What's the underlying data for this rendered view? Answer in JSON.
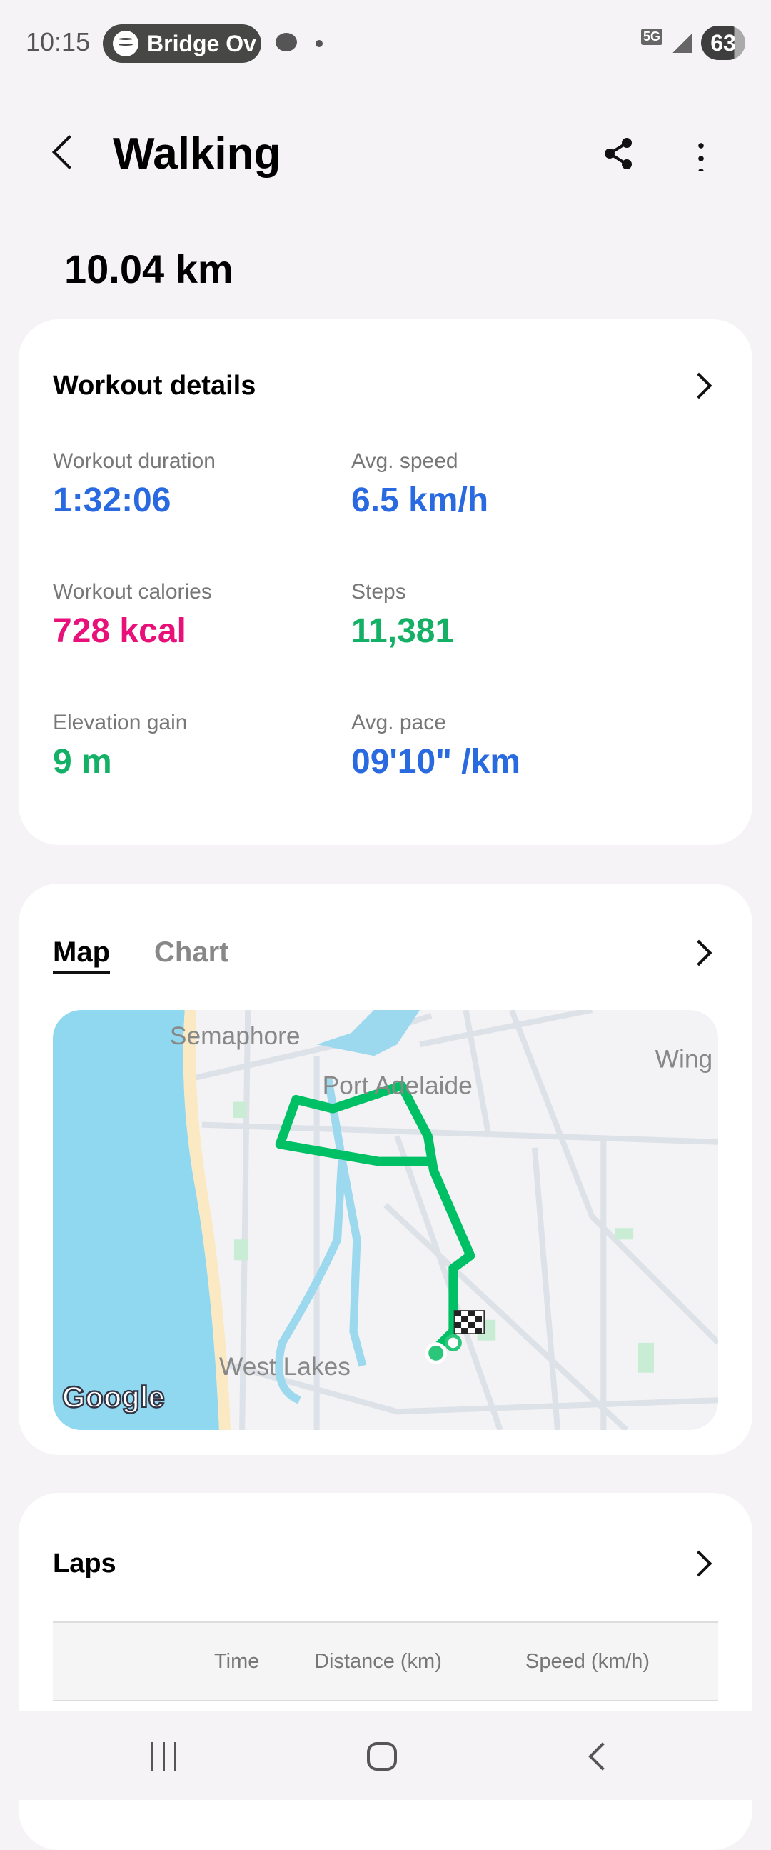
{
  "status_bar": {
    "time": "10:15",
    "media_title": "Bridge Ov",
    "network": "5G",
    "battery": "63"
  },
  "header": {
    "title": "Walking",
    "total_distance": "10.04 km"
  },
  "workout_details": {
    "title": "Workout details",
    "stats": [
      {
        "label": "Workout duration",
        "value": "1:32:06",
        "color": "#2a6ae0"
      },
      {
        "label": "Avg. speed",
        "value": "6.5 km/h",
        "color": "#2a6ae0"
      },
      {
        "label": "Workout calories",
        "value": "728 kcal",
        "color": "#e8117a"
      },
      {
        "label": "Steps",
        "value": "11,381",
        "color": "#13b066"
      },
      {
        "label": "Elevation gain",
        "value": "9 m",
        "color": "#13b066"
      },
      {
        "label": "Avg. pace",
        "value": "09'10\" /km",
        "color": "#2a6ae0"
      }
    ]
  },
  "map_card": {
    "tabs": [
      {
        "label": "Map",
        "active": true
      },
      {
        "label": "Chart",
        "active": false
      }
    ],
    "places": [
      "Semaphore",
      "Port Adelaide",
      "Wing",
      "West Lakes"
    ],
    "attribution": "Google",
    "route_color": "#00c065"
  },
  "laps": {
    "title": "Laps",
    "columns": [
      "Time",
      "Distance (km)",
      "Speed (km/h)"
    ]
  }
}
